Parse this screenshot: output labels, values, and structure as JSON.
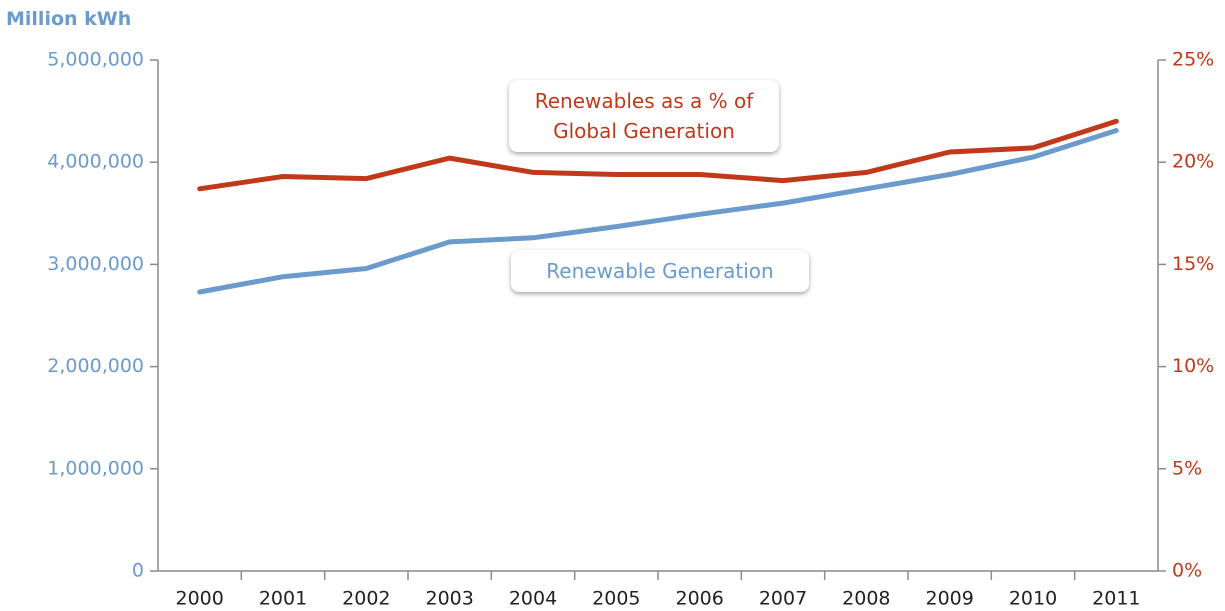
{
  "chart_data": {
    "type": "line",
    "y_label": "Million kWh",
    "categories": [
      "2000",
      "2001",
      "2002",
      "2003",
      "2004",
      "2005",
      "2006",
      "2007",
      "2008",
      "2009",
      "2010",
      "2011"
    ],
    "series": [
      {
        "name": "Renewable Generation",
        "color": "#6a9bcc",
        "values": [
          2730000,
          2880000,
          2960000,
          3220000,
          3260000,
          3370000,
          3490000,
          3600000,
          3740000,
          3880000,
          4050000,
          4310000
        ]
      },
      {
        "name": "Renewables as a % of Global Generation",
        "color": "#c0391b",
        "axis": "y2",
        "values": [
          18.7,
          19.3,
          19.2,
          20.2,
          19.5,
          19.4,
          19.4,
          19.1,
          19.5,
          20.5,
          20.7,
          22.0
        ]
      }
    ],
    "ylim": [
      0,
      5000000
    ],
    "yticks": [
      0,
      {
        "value": 1000000,
        "label": "1,000,000"
      },
      {
        "value": 2000000,
        "label": "2,000,000"
      },
      {
        "value": 3000000,
        "label": "3,000,000"
      },
      {
        "value": 4000000,
        "label": "4,000,000"
      },
      {
        "value": 5000000,
        "label": "5,000,000"
      }
    ],
    "y2lim": [
      0,
      25
    ],
    "y2ticks": [
      {
        "value": 0,
        "label": "0%"
      },
      {
        "value": 5,
        "label": "5%"
      },
      {
        "value": 10,
        "label": "10%"
      },
      {
        "value": 15,
        "label": "15%"
      },
      {
        "value": 20,
        "label": "20%"
      },
      {
        "value": 25,
        "label": "25%"
      }
    ],
    "grid": false
  }
}
